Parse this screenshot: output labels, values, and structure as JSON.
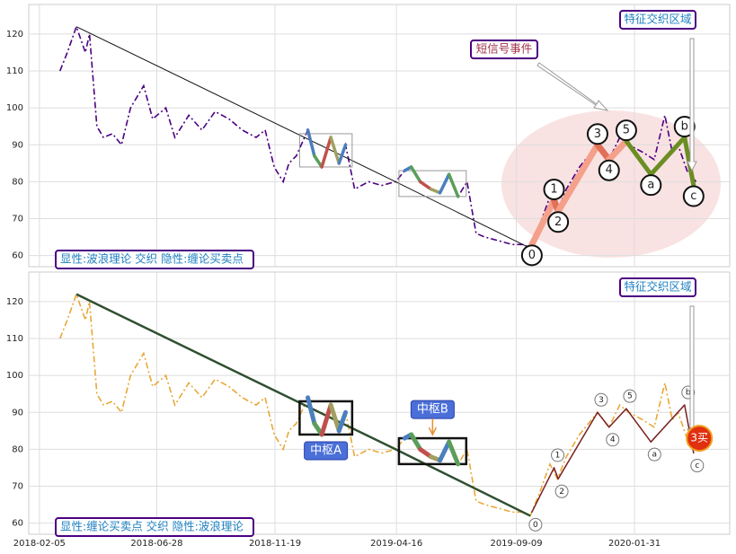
{
  "chart_data": {
    "type": "line",
    "x": [
      "2018-03-02",
      "2018-03-11",
      "2018-03-22",
      "2018-04-02",
      "2018-04-07",
      "2018-04-16",
      "2018-04-24",
      "2018-05-05",
      "2018-05-16",
      "2018-05-27",
      "2018-06-12",
      "2018-06-23",
      "2018-07-09",
      "2018-07-20",
      "2018-08-06",
      "2018-08-22",
      "2018-09-07",
      "2018-09-24",
      "2018-10-10",
      "2018-10-27",
      "2018-11-07",
      "2018-11-18",
      "2018-11-29",
      "2018-12-06",
      "2018-12-15",
      "2018-12-29",
      "2019-01-06",
      "2019-01-15",
      "2019-01-26",
      "2019-02-05",
      "2019-02-13",
      "2019-02-24",
      "2019-03-13",
      "2019-03-29",
      "2019-04-15",
      "2019-04-26",
      "2019-05-04",
      "2019-05-15",
      "2019-05-28",
      "2019-06-08",
      "2019-06-19",
      "2019-06-30",
      "2019-07-11",
      "2019-07-22",
      "2019-08-02",
      "2019-08-19",
      "2019-09-04",
      "2019-09-18",
      "2019-09-26",
      "2019-10-07",
      "2019-10-20",
      "2019-10-29",
      "2019-11-09",
      "2019-11-25",
      "2019-12-17",
      "2019-12-31",
      "2020-01-13",
      "2020-01-24",
      "2020-02-10",
      "2020-02-24",
      "2020-03-08",
      "2020-03-17",
      "2020-03-24",
      "2020-04-04",
      "2020-04-15"
    ],
    "values": [
      110,
      115,
      122,
      115,
      120,
      95,
      92,
      93,
      90,
      100,
      106,
      97,
      100,
      92,
      98,
      94,
      99,
      97,
      94,
      92,
      94,
      84,
      80,
      85,
      87,
      94,
      87,
      84,
      92,
      85,
      90,
      78,
      80,
      79,
      80,
      83,
      84,
      80,
      78,
      77,
      82,
      76,
      80,
      66,
      65,
      64,
      63,
      63,
      62,
      68,
      76,
      72,
      78,
      84,
      90,
      86,
      92,
      90,
      88,
      86,
      98,
      88,
      90,
      83,
      80
    ],
    "xlim": [
      "2018-01-23",
      "2020-05-26"
    ],
    "xticks": [
      "2018-02-05",
      "2018-06-28",
      "2018-11-19",
      "2019-04-16",
      "2019-09-09",
      "2020-01-31"
    ],
    "ylim": [
      57,
      128
    ],
    "yticks": [
      60,
      70,
      80,
      90,
      100,
      110,
      120
    ],
    "grid": true,
    "trend": {
      "x": [
        "2018-03-22",
        "2019-04-15",
        "2019-09-26"
      ],
      "values": [
        122,
        80,
        62
      ]
    },
    "waves": {
      "labels": [
        "0",
        "1",
        "2",
        "3",
        "4",
        "5",
        "a",
        "b",
        "c"
      ],
      "x": [
        "2019-09-28",
        "2019-10-25",
        "2019-10-30",
        "2019-12-17",
        "2019-12-31",
        "2020-01-21",
        "2020-02-20",
        "2020-04-01",
        "2020-04-12"
      ],
      "values": [
        63,
        75,
        72,
        90,
        86,
        91,
        82,
        92,
        79
      ]
    },
    "centers": [
      {
        "label": "中枢A",
        "x": [
          "2018-12-19",
          "2019-02-21"
        ],
        "values": [
          84,
          93
        ]
      },
      {
        "label": "中枢B",
        "x": [
          "2019-04-19",
          "2019-07-10"
        ],
        "values": [
          76,
          83
        ]
      }
    ],
    "panels": [
      {
        "color": "#4b0082",
        "legend": "显性:波浪理论 交织 隐性:缠论买卖点",
        "tag": "特征交织区域",
        "event": "短信号事件"
      },
      {
        "color": "#e8a838",
        "legend": "显性:缠论买卖点 交织 隐性:波浪理论",
        "tag": "特征交织区域",
        "buy": {
          "label": "3买",
          "x": "2020-04-19",
          "value": 83
        }
      }
    ]
  }
}
